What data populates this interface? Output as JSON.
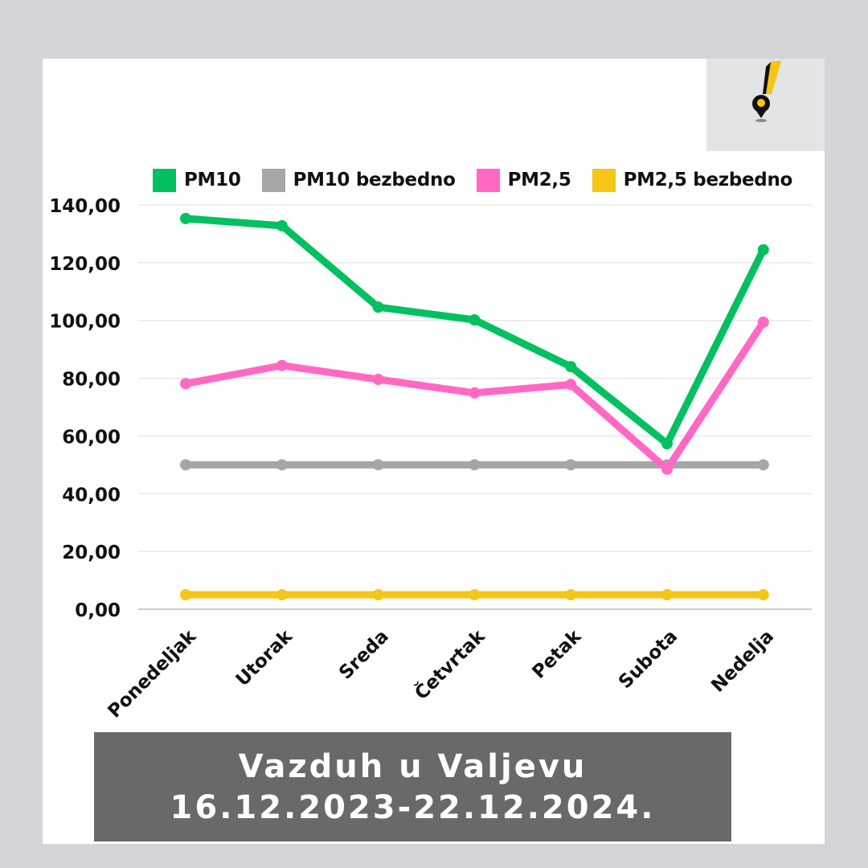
{
  "title": {
    "line1": "Vazduh u Valjevu",
    "line2": "16.12.2023-22.12.2024."
  },
  "logo": {
    "icon": "exclamation-pin-icon"
  },
  "chart_data": {
    "type": "line",
    "categories": [
      "Ponedeljak",
      "Utorak",
      "Sreda",
      "Četvrtak",
      "Petak",
      "Subota",
      "Nedelja"
    ],
    "ylim": [
      0,
      140
    ],
    "yticks": [
      "0,00",
      "20,00",
      "40,00",
      "60,00",
      "80,00",
      "100,00",
      "120,00",
      "140,00"
    ],
    "grid": true,
    "legend_position": "top",
    "series": [
      {
        "name": "PM10",
        "color": "#00c060",
        "values": [
          135.3,
          132.8,
          104.6,
          100.2,
          84.0,
          57.3,
          124.5
        ]
      },
      {
        "name": "PM10 bezbedno",
        "color": "#a6a6a6",
        "values": [
          50,
          50,
          50,
          50,
          50,
          50,
          50
        ]
      },
      {
        "name": "PM2,5",
        "color": "#ff69c4",
        "values": [
          78.1,
          84.4,
          79.6,
          74.9,
          77.8,
          48.5,
          99.4
        ]
      },
      {
        "name": "PM2,5 bezbedno",
        "color": "#f5c518",
        "values": [
          5,
          5,
          5,
          5,
          5,
          5,
          5
        ]
      }
    ]
  }
}
